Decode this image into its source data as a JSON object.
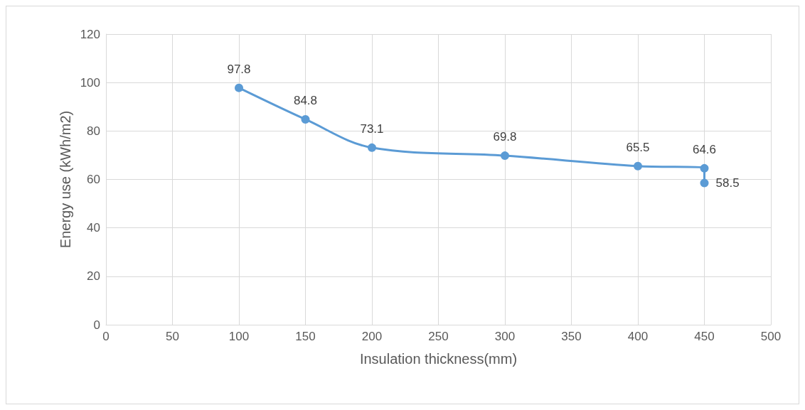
{
  "chart_data": {
    "type": "line",
    "xlabel": "Insulation thickness(mm)",
    "ylabel": "Energy use (kWh/m2)",
    "x": [
      100,
      150,
      200,
      300,
      400,
      450,
      450
    ],
    "series": [
      {
        "color": "#5b9bd5",
        "values": [
          97.8,
          84.8,
          73.1,
          69.8,
          65.5,
          64.6,
          58.5
        ]
      }
    ],
    "xlim": [
      0,
      500
    ],
    "xticks": [
      0,
      50,
      100,
      150,
      200,
      250,
      300,
      350,
      400,
      450,
      500
    ],
    "ylim": [
      0,
      120
    ],
    "yticks": [
      0,
      20,
      40,
      60,
      80,
      100,
      120
    ],
    "grid": true,
    "marker": "circle",
    "line_style": "solid",
    "data_labels": true
  }
}
